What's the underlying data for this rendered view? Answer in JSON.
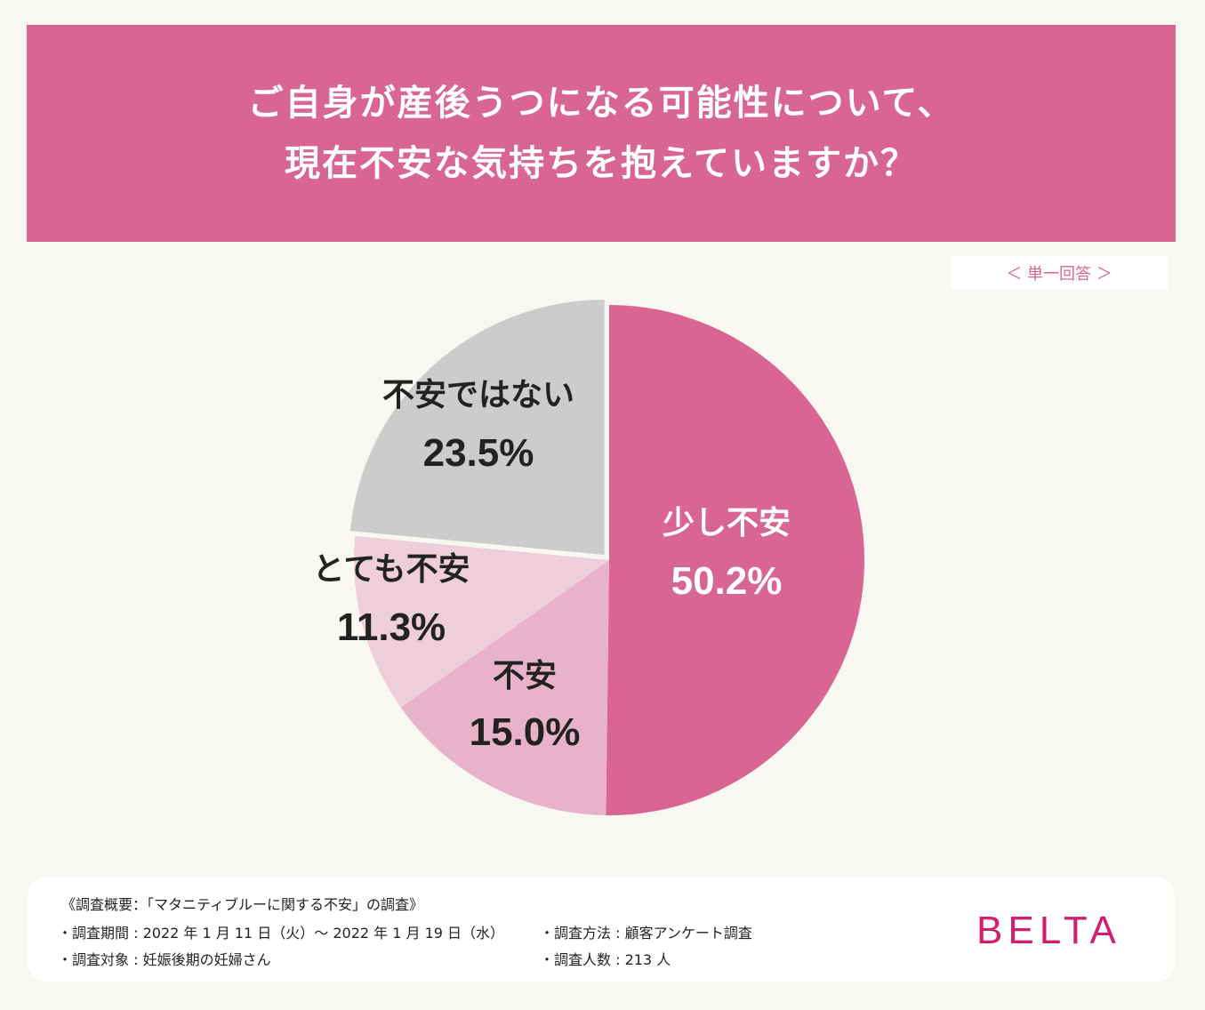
{
  "header": {
    "line1": "ご自身が産後うつになる可能性について、",
    "line2": "現在不安な気持ちを抱えていますか？"
  },
  "badge": {
    "label": "＜ 単一回答 ＞"
  },
  "chart_data": {
    "type": "pie",
    "title": "ご自身が産後うつになる可能性について、現在不安な気持ちを抱えていますか？",
    "answer_type": "＜ 単一回答 ＞",
    "slices": [
      {
        "label": "少し不安",
        "value": 50.2,
        "display": "50.2%",
        "color": "#d86592",
        "text_color": "#ffffff"
      },
      {
        "label": "不安",
        "value": 15.0,
        "display": "15.0%",
        "color": "#e8b3c9",
        "text_color": "#222222"
      },
      {
        "label": "とても不安",
        "value": 11.3,
        "display": "11.3%",
        "color": "#efcedb",
        "text_color": "#222222"
      },
      {
        "label": "不安ではない",
        "value": 23.5,
        "display": "23.5%",
        "color": "#cccccc",
        "text_color": "#222222"
      }
    ]
  },
  "footer": {
    "heading": "《調査概要：「マタニティブルーに関する不安」の調査》",
    "period": "・調査期間 : 2022 年 1 月 11 日（火）～ 2022 年 1 月 19 日（水）",
    "target": "・調査対象 : 妊娠後期の妊婦さん",
    "method": "・調査方法 : 顧客アンケート調査",
    "count": "・調査人数 : 213 人"
  },
  "brand": {
    "logo_text": "BELTA",
    "color": "#cf1f6e"
  }
}
